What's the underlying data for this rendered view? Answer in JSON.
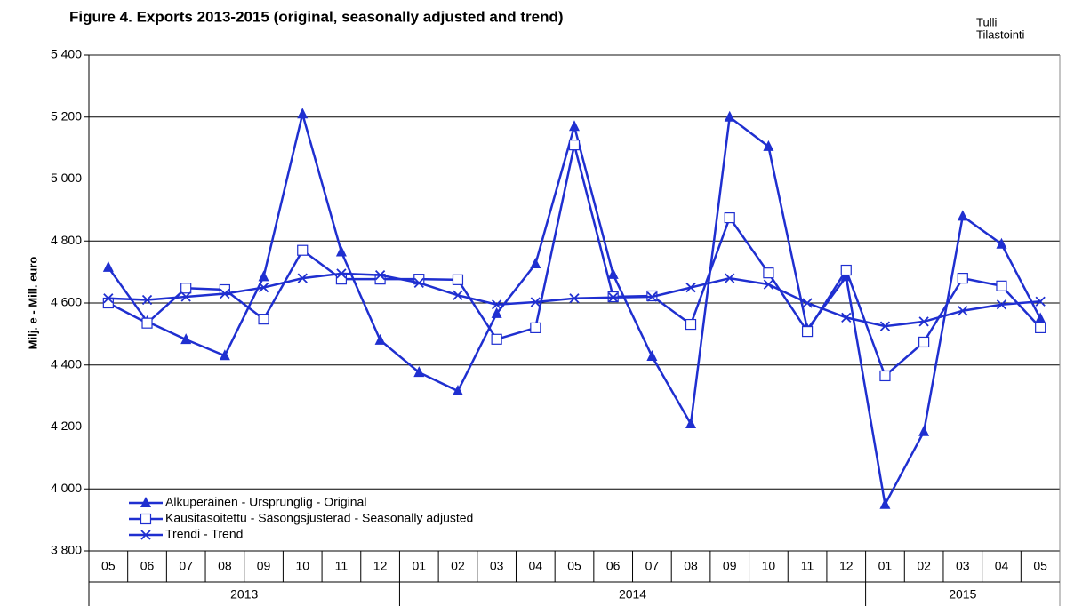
{
  "chart_data": {
    "type": "line",
    "title": "Figure 4. Exports 2013-2015 (original, seasonally adjusted and trend)",
    "source": [
      "Tulli",
      "Tilastointi"
    ],
    "y_label": "Milj. e - Mill. euro",
    "categories": [
      "05",
      "06",
      "07",
      "08",
      "09",
      "10",
      "11",
      "12",
      "01",
      "02",
      "03",
      "04",
      "05",
      "06",
      "07",
      "08",
      "09",
      "10",
      "11",
      "12",
      "01",
      "02",
      "03",
      "04",
      "05"
    ],
    "groups": [
      {
        "label": "2013",
        "span": 8
      },
      {
        "label": "2014",
        "span": 12
      },
      {
        "label": "2015",
        "span": 5
      }
    ],
    "series": [
      {
        "name": "Alkuperäinen - Ursprunglig - Original",
        "color": "#1f2fd0",
        "marker": "triangle",
        "values": [
          4715,
          4540,
          4482,
          4430,
          4685,
          5210,
          4765,
          4480,
          4376,
          4316,
          4566,
          4726,
          5170,
          4692,
          4428,
          4210,
          5200,
          5105,
          4515,
          4685,
          3950,
          4185,
          4880,
          4790,
          4550
        ]
      },
      {
        "name": "Kausitasoitettu - Säsongsjusterad - Seasonally adjusted",
        "color": "#1f2fd0",
        "marker": "square",
        "values": [
          4600,
          4535,
          4648,
          4643,
          4548,
          4770,
          4677,
          4677,
          4677,
          4675,
          4483,
          4520,
          5110,
          4620,
          4623,
          4531,
          4875,
          4697,
          4508,
          4706,
          4365,
          4474,
          4680,
          4655,
          4520
        ]
      },
      {
        "name": "Trendi - Trend",
        "color": "#1f2fd0",
        "marker": "x",
        "values": [
          4615,
          4610,
          4620,
          4630,
          4650,
          4680,
          4695,
          4690,
          4665,
          4625,
          4595,
          4603,
          4615,
          4618,
          4620,
          4650,
          4680,
          4660,
          4600,
          4553,
          4525,
          4540,
          4575,
          4595,
          4605
        ]
      }
    ],
    "ylim": [
      3800,
      5400
    ],
    "yticks": [
      {
        "value": 3800,
        "label": "3 800"
      },
      {
        "value": 4000,
        "label": "4 000"
      },
      {
        "value": 4200,
        "label": "4 200"
      },
      {
        "value": 4400,
        "label": "4 400"
      },
      {
        "value": 4600,
        "label": "4 600"
      },
      {
        "value": 4800,
        "label": "4 800"
      },
      {
        "value": 5000,
        "label": "5 000"
      },
      {
        "value": 5200,
        "label": "5 200"
      },
      {
        "value": 5400,
        "label": "5 400"
      }
    ],
    "grid": true,
    "legend": "lower left"
  }
}
